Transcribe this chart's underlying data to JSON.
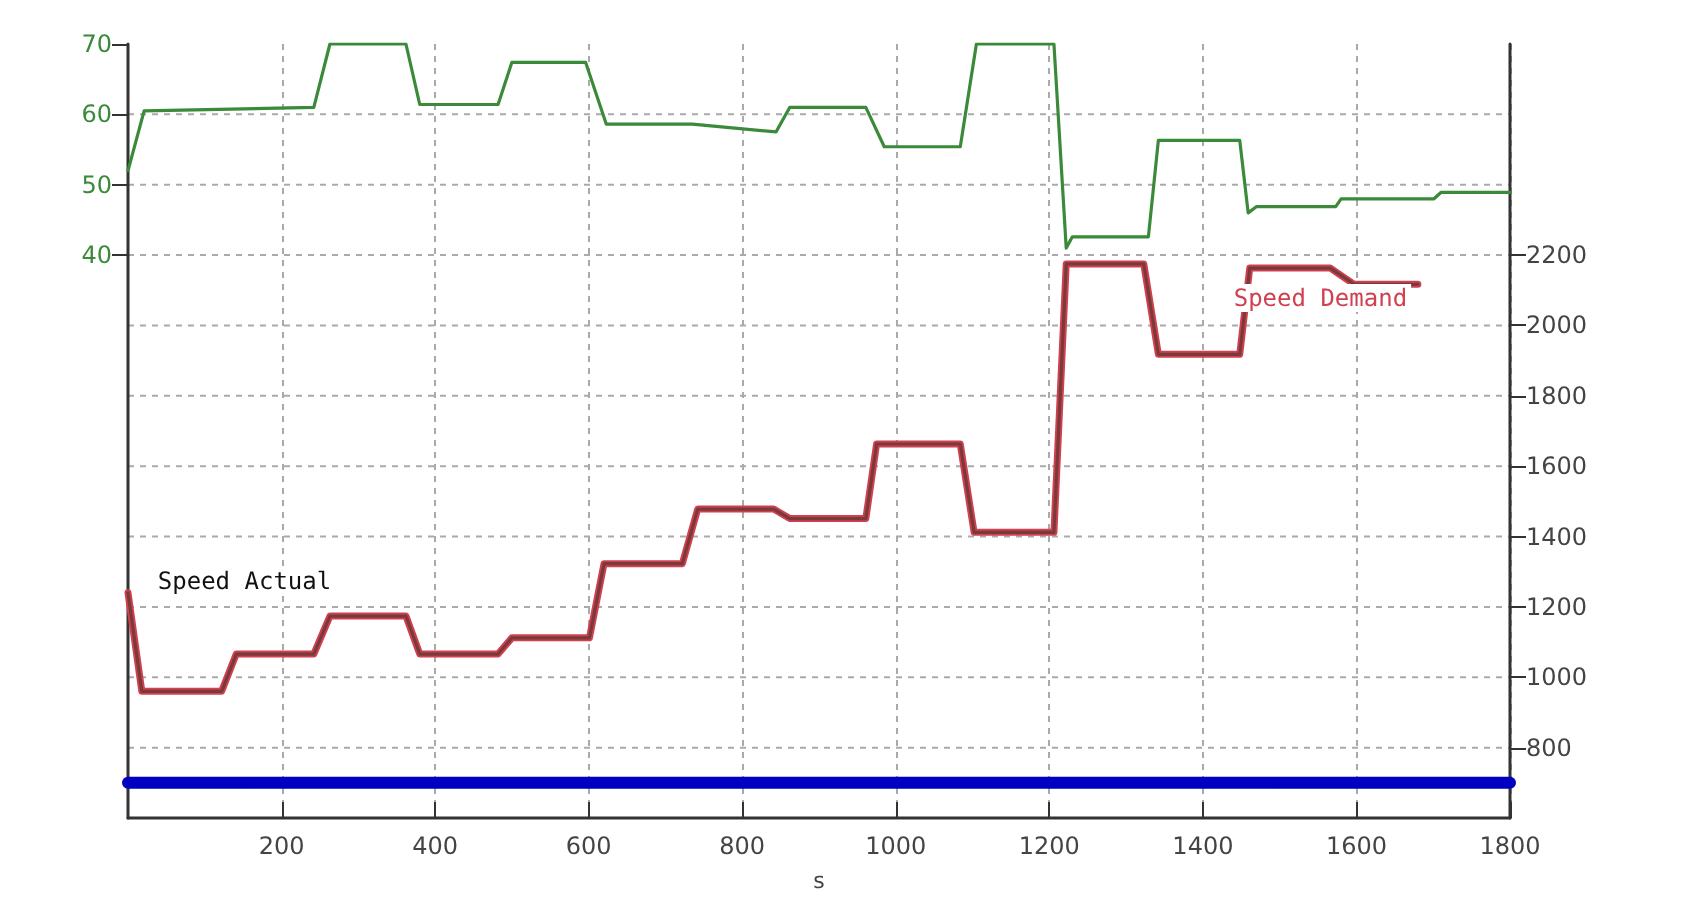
{
  "chart_data": {
    "type": "line",
    "xlabel": "s",
    "xlim": [
      0,
      1800
    ],
    "xticks": [
      200,
      400,
      600,
      800,
      1000,
      1200,
      1400,
      1600,
      1800
    ],
    "ylim": [
      -40,
      70
    ],
    "yticks": [
      40,
      50,
      60,
      70
    ],
    "y2lim": [
      600,
      2800
    ],
    "y2ticks": [
      800,
      1000,
      1200,
      1400,
      1600,
      1800,
      2000,
      2200,
      {
        "value": 2400,
        "label": null
      },
      {
        "value": 2600,
        "label": null
      }
    ],
    "grid": true,
    "legend": false,
    "marker": "none",
    "line_style": "solid",
    "series": [
      {
        "color": "#3a8a3a",
        "x": [
          0,
          21,
          242,
          263,
          362,
          380,
          482,
          500,
          596,
          623,
          735,
          844,
          862,
          961,
          985,
          1084,
          1105,
          1206,
          1222,
          1230,
          1329,
          1342,
          1448,
          1459,
          1470,
          1573,
          1580,
          1701,
          1710,
          1800
        ],
        "values": [
          52,
          60.5,
          61,
          70,
          70,
          61.4,
          61.4,
          67.4,
          67.4,
          58.6,
          58.6,
          57.5,
          61,
          61,
          55.4,
          55.4,
          70,
          70,
          41,
          42.6,
          42.6,
          56.3,
          56.3,
          46,
          46.9,
          46.9,
          48,
          48,
          48.9,
          48.9
        ]
      },
      {
        "name": "Speed Demand",
        "color": "#d04050",
        "axis": "y2",
        "x": [
          0,
          18,
          122,
          141,
          242,
          263,
          362,
          380,
          482,
          500,
          601,
          620,
          722,
          742,
          841,
          862,
          961,
          975,
          1084,
          1102,
          1206,
          1222,
          1323,
          1342,
          1448,
          1461,
          1566,
          1597,
          1680
        ],
        "values": [
          1240,
          960,
          960,
          1066,
          1066,
          1174,
          1174,
          1066,
          1066,
          1112,
          1112,
          1323,
          1323,
          1478,
          1478,
          1451,
          1451,
          1663,
          1663,
          1412,
          1412,
          2175,
          2175,
          1918,
          1918,
          2163,
          2163,
          2117,
          2117
        ]
      },
      {
        "name": "Speed Actual",
        "color": "#7a3a3a",
        "axis": "y2",
        "x": [
          0,
          18,
          122,
          141,
          242,
          263,
          362,
          380,
          482,
          500,
          601,
          620,
          722,
          742,
          841,
          862,
          961,
          975,
          1084,
          1102,
          1206,
          1222,
          1323,
          1342,
          1448,
          1461,
          1566,
          1597,
          1680
        ],
        "values": [
          1240,
          960,
          960,
          1066,
          1066,
          1174,
          1174,
          1066,
          1066,
          1112,
          1112,
          1323,
          1323,
          1478,
          1478,
          1451,
          1451,
          1663,
          1663,
          1412,
          1412,
          2175,
          2175,
          1918,
          1918,
          2163,
          2163,
          2117,
          2117
        ]
      },
      {
        "color": "#0000c0",
        "axis": "y2",
        "x": [
          0,
          1800
        ],
        "values": [
          700,
          700
        ]
      }
    ]
  }
}
